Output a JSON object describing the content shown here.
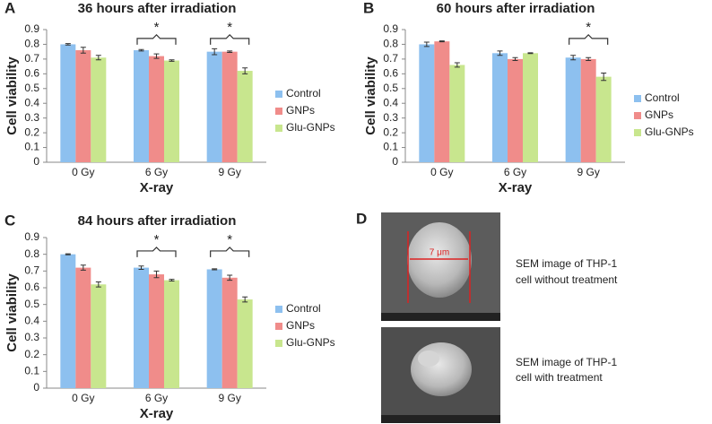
{
  "chart_data": [
    {
      "type": "bar",
      "panel_label": "A",
      "title": "36 hours after irradiation",
      "x_label": "X-ray",
      "y_label": "Cell viability",
      "categories": [
        "0 Gy",
        "6 Gy",
        "9 Gy"
      ],
      "series": [
        {
          "name": "Control",
          "color": "#8dc0ef",
          "values": [
            0.8,
            0.76,
            0.75
          ],
          "errors": [
            0.005,
            0.005,
            0.02
          ]
        },
        {
          "name": "GNPs",
          "color": "#f08c8a",
          "values": [
            0.76,
            0.72,
            0.75
          ],
          "errors": [
            0.02,
            0.015,
            0.005
          ]
        },
        {
          "name": "Glu-GNPs",
          "color": "#c8e68e",
          "values": [
            0.71,
            0.69,
            0.62
          ],
          "errors": [
            0.015,
            0.005,
            0.02
          ]
        }
      ],
      "ylim": [
        0,
        0.9
      ],
      "yticks": [
        0,
        0.1,
        0.2,
        0.3,
        0.4,
        0.5,
        0.6,
        0.7,
        0.8,
        0.9
      ],
      "grid": false,
      "legend": "right",
      "annotations": [
        "*",
        "*"
      ]
    },
    {
      "type": "bar",
      "panel_label": "B",
      "title": "60 hours after irradiation",
      "x_label": "X-ray",
      "y_label": "Cell viability",
      "categories": [
        "0 Gy",
        "6 Gy",
        "9 Gy"
      ],
      "series": [
        {
          "name": "Control",
          "color": "#8dc0ef",
          "values": [
            0.8,
            0.74,
            0.71
          ],
          "errors": [
            0.015,
            0.015,
            0.015
          ]
        },
        {
          "name": "GNPs",
          "color": "#f08c8a",
          "values": [
            0.82,
            0.7,
            0.7
          ],
          "errors": [
            0.003,
            0.01,
            0.01
          ]
        },
        {
          "name": "Glu-GNPs",
          "color": "#c8e68e",
          "values": [
            0.66,
            0.74,
            0.58
          ],
          "errors": [
            0.015,
            0.003,
            0.025
          ]
        }
      ],
      "ylim": [
        0,
        0.9
      ],
      "yticks": [
        0,
        0.1,
        0.2,
        0.3,
        0.4,
        0.5,
        0.6,
        0.7,
        0.8,
        0.9
      ],
      "grid": false,
      "legend": "right",
      "annotations": [
        "*"
      ]
    },
    {
      "type": "bar",
      "panel_label": "C",
      "title": "84 hours after irradiation",
      "x_label": "X-ray",
      "y_label": "Cell viability",
      "categories": [
        "0 Gy",
        "6 Gy",
        "9 Gy"
      ],
      "series": [
        {
          "name": "Control",
          "color": "#8dc0ef",
          "values": [
            0.8,
            0.72,
            0.71
          ],
          "errors": [
            0.003,
            0.01,
            0.003
          ]
        },
        {
          "name": "GNPs",
          "color": "#f08c8a",
          "values": [
            0.72,
            0.68,
            0.66
          ],
          "errors": [
            0.015,
            0.02,
            0.015
          ]
        },
        {
          "name": "Glu-GNPs",
          "color": "#c8e68e",
          "values": [
            0.62,
            0.645,
            0.53
          ],
          "errors": [
            0.015,
            0.005,
            0.015
          ]
        }
      ],
      "ylim": [
        0,
        0.9
      ],
      "yticks": [
        0,
        0.1,
        0.2,
        0.3,
        0.4,
        0.5,
        0.6,
        0.7,
        0.8,
        0.9
      ],
      "grid": false,
      "legend": "right",
      "annotations": [
        "*",
        "*"
      ]
    }
  ],
  "panel_d": {
    "panel_label": "D",
    "scale_label": "7 μm",
    "images": [
      {
        "caption": [
          "SEM image of THP-1",
          "cell without treatment"
        ]
      },
      {
        "caption": [
          "SEM image of THP-1",
          "cell with treatment"
        ]
      }
    ]
  }
}
